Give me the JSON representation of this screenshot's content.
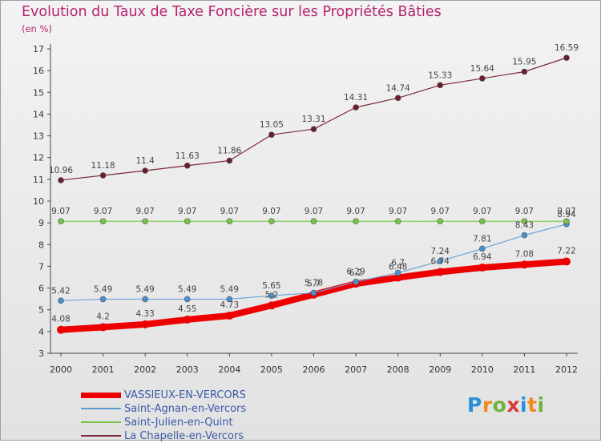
{
  "header": {
    "title": "Evolution du Taux de Taxe Foncière sur les Propriétés Bâties",
    "unit": "(en %)"
  },
  "logo": {
    "text": "Proxiti"
  },
  "chart_data": {
    "type": "line",
    "title": "Evolution du Taux de Taxe Foncière sur les Propriétés Bâties",
    "ylabel": "(en %)",
    "xlabel": "",
    "x": [
      "2000",
      "2001",
      "2002",
      "2003",
      "2004",
      "2005",
      "2006",
      "2007",
      "2008",
      "2009",
      "2010",
      "2011",
      "2012"
    ],
    "ylim": [
      3,
      17
    ],
    "yticks": [
      3,
      4,
      5,
      6,
      7,
      8,
      9,
      10,
      11,
      12,
      13,
      14,
      15,
      16,
      17
    ],
    "grid": false,
    "legend_position": "bottom-left",
    "series": [
      {
        "name": "VASSIEUX-EN-VERCORS",
        "color": "#ee0000",
        "values": [
          4.08,
          4.2,
          4.33,
          4.55,
          4.73,
          5.2,
          5.7,
          6.2,
          6.48,
          6.74,
          6.94,
          7.08,
          7.22
        ],
        "labels": [
          "4.08",
          "4.2",
          "4.33",
          "4.55",
          "4.73",
          "5.2",
          "5.7",
          "6.2",
          "6.48",
          "6.74",
          "6.94",
          "7.08",
          "7.22"
        ]
      },
      {
        "name": "Saint-Agnan-en-Vercors",
        "color": "#5b9bd5",
        "values": [
          5.42,
          5.49,
          5.49,
          5.49,
          5.49,
          5.65,
          5.78,
          6.29,
          6.7,
          7.24,
          7.81,
          8.43,
          8.94
        ],
        "labels": [
          "5.42",
          "5.49",
          "5.49",
          "5.49",
          "5.49",
          "5.65",
          "5.78",
          "6.29",
          "6.7",
          "7.24",
          "7.81",
          "8.43",
          "8.94"
        ]
      },
      {
        "name": "Saint-Julien-en-Quint",
        "color": "#77c24a",
        "values": [
          9.07,
          9.07,
          9.07,
          9.07,
          9.07,
          9.07,
          9.07,
          9.07,
          9.07,
          9.07,
          9.07,
          9.07,
          9.07
        ],
        "labels": [
          "9.07",
          "9.07",
          "9.07",
          "9.07",
          "9.07",
          "9.07",
          "9.07",
          "9.07",
          "9.07",
          "9.07",
          "9.07",
          "9.07",
          "9.07"
        ]
      },
      {
        "name": "La Chapelle-en-Vercors",
        "color": "#7a2a38",
        "values": [
          10.96,
          11.18,
          11.4,
          11.63,
          11.86,
          13.05,
          13.31,
          14.31,
          14.74,
          15.33,
          15.64,
          15.95,
          16.59
        ],
        "labels": [
          "10.96",
          "11.18",
          "11.4",
          "11.63",
          "11.86",
          "13.05",
          "13.31",
          "14.31",
          "14.74",
          "15.33",
          "15.64",
          "15.95",
          "16.59"
        ]
      }
    ]
  }
}
